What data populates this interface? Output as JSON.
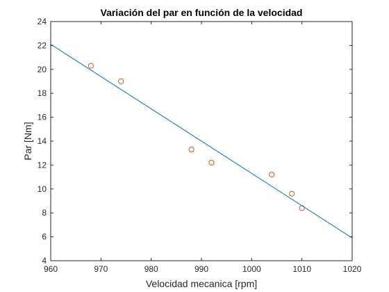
{
  "chart_data": {
    "type": "scatter",
    "title": "Variación del par en función de la velocidad",
    "xlabel": "Velocidad mecanica [rpm]",
    "ylabel": "Par [Nm]",
    "xlim": [
      960,
      1020
    ],
    "ylim": [
      4,
      24
    ],
    "xticks": [
      "960",
      "970",
      "980",
      "990",
      "1000",
      "1010",
      "1020"
    ],
    "yticks": [
      "4",
      "6",
      "8",
      "10",
      "12",
      "14",
      "16",
      "18",
      "20",
      "22",
      "24"
    ],
    "grid": false,
    "series": [
      {
        "kind": "markers",
        "marker": "circle",
        "color": "#D95319",
        "points": [
          {
            "x": 968,
            "y": 20.3
          },
          {
            "x": 974,
            "y": 19.0
          },
          {
            "x": 988,
            "y": 13.3
          },
          {
            "x": 992,
            "y": 12.2
          },
          {
            "x": 1004,
            "y": 11.2
          },
          {
            "x": 1008,
            "y": 9.6
          },
          {
            "x": 1010,
            "y": 8.4
          }
        ]
      },
      {
        "kind": "line",
        "color": "#0072BD",
        "points": [
          {
            "x": 960,
            "y": 22.1
          },
          {
            "x": 1020,
            "y": 5.9
          }
        ]
      }
    ]
  }
}
